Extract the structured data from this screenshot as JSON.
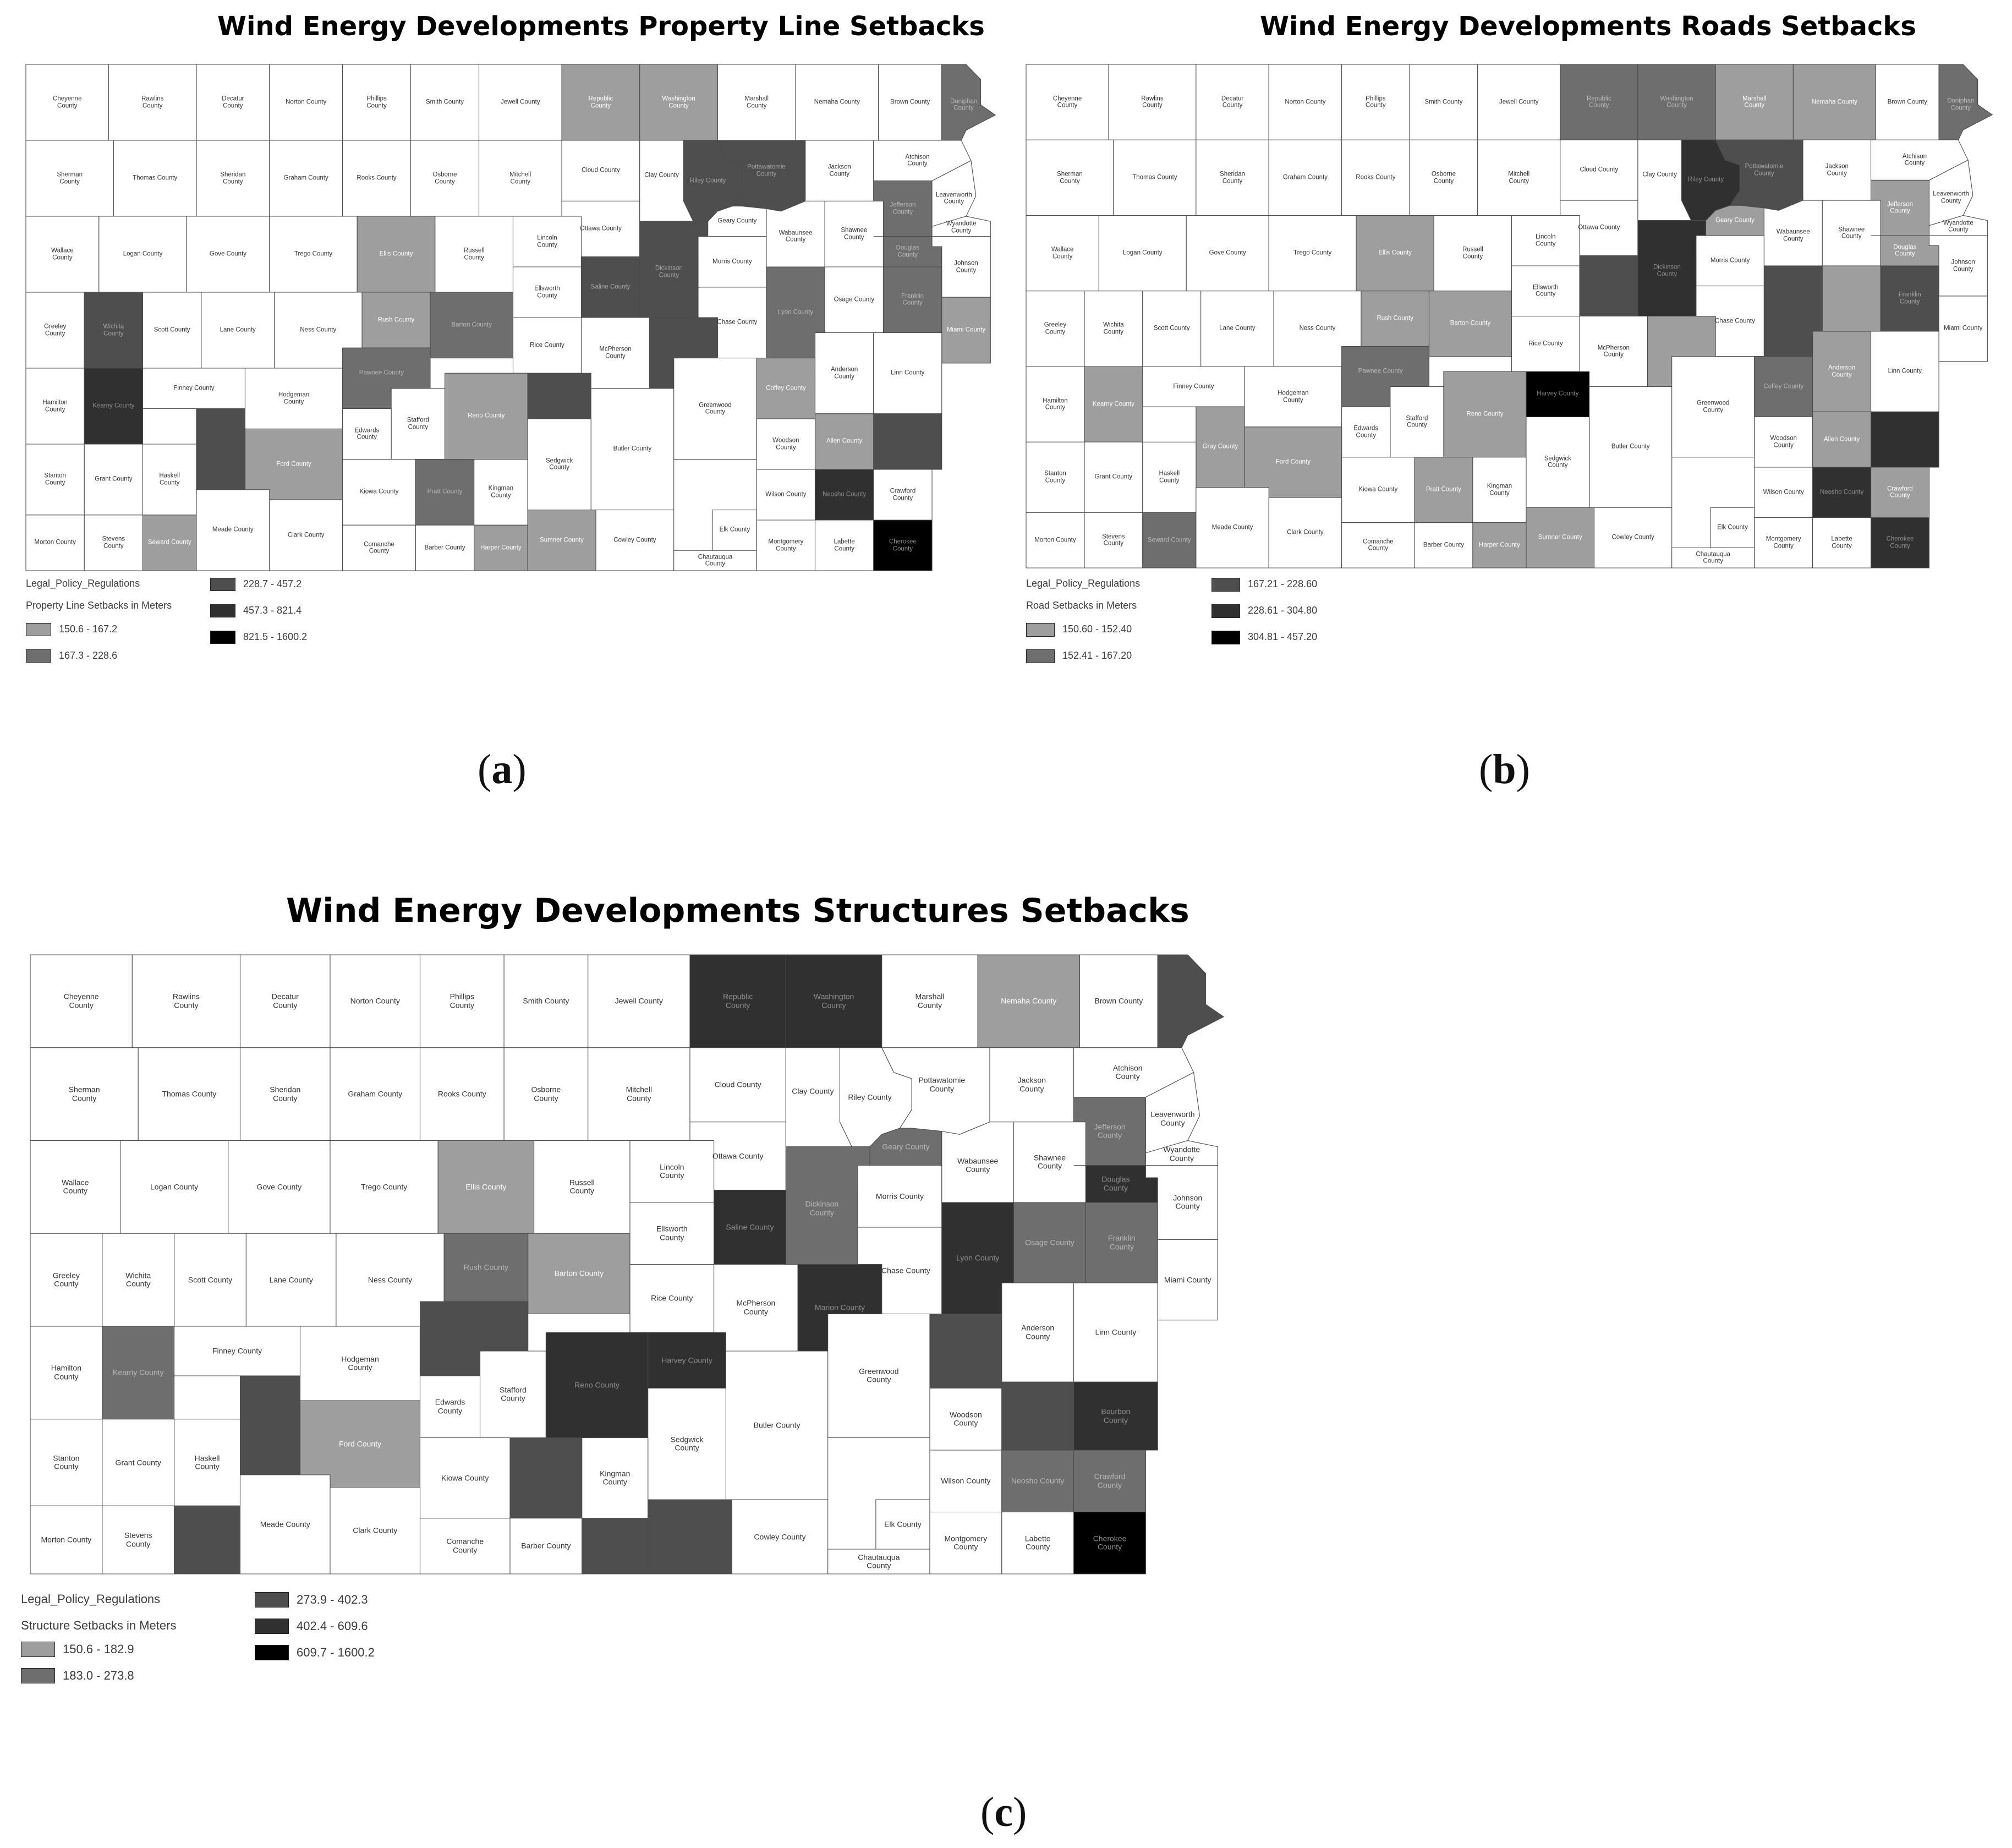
{
  "maps": [
    {
      "id": "a",
      "title": "Wind Energy Developments Property Line Setbacks",
      "panel_label": "a",
      "legend": {
        "layer": "Legal_Policy_Regulations",
        "field": "Property Line Setbacks in Meters",
        "classes": [
          {
            "label": "150.6 - 167.2",
            "color": "#9e9e9e"
          },
          {
            "label": "167.3 - 228.6",
            "color": "#6e6e6e"
          },
          {
            "label": "228.7 - 457.2",
            "color": "#4e4e4e"
          },
          {
            "label": "457.3 - 821.4",
            "color": "#303030"
          },
          {
            "label": "821.5 - 1600.2",
            "color": "#000000"
          }
        ]
      },
      "shaded_counties": {
        "Republic": 1,
        "Washington": 1,
        "Doniphan": 2,
        "Riley": 3,
        "Pottawatomie": 3,
        "Ellis": 1,
        "Saline": 3,
        "Dickinson": 3,
        "Douglas": 2,
        "Jefferson": 2,
        "Rush": 1,
        "Barton": 2,
        "Wichita": 3,
        "Lyon": 2,
        "Franklin": 2,
        "Miami": 1,
        "Marion": 3,
        "Pawnee": 2,
        "Coffey": 1,
        "Reno": 1,
        "Kearny": 4,
        "Harvey": 3,
        "Allen": 1,
        "Gray": 3,
        "Ford": 1,
        "Pratt": 2,
        "Bourbon": 3,
        "Neosho": 4,
        "Seward": 1,
        "Harper": 1,
        "Sumner": 1,
        "Cherokee": 5
      }
    },
    {
      "id": "b",
      "title": "Wind Energy Developments Roads Setbacks",
      "panel_label": "b",
      "legend": {
        "layer": "Legal_Policy_Regulations",
        "field": "Road Setbacks in Meters",
        "classes": [
          {
            "label": "150.60 - 152.40",
            "color": "#9e9e9e"
          },
          {
            "label": "152.41 - 167.20",
            "color": "#6e6e6e"
          },
          {
            "label": "167.21 - 228.60",
            "color": "#4e4e4e"
          },
          {
            "label": "228.61 - 304.80",
            "color": "#303030"
          },
          {
            "label": "304.81 - 457.20",
            "color": "#000000"
          }
        ]
      },
      "shaded_counties": {
        "Republic": 2,
        "Washington": 2,
        "Marshall": 1,
        "Nemaha": 1,
        "Doniphan": 2,
        "Riley": 4,
        "Pottawatomie": 3,
        "Jefferson": 1,
        "Ellis": 1,
        "Geary": 1,
        "Saline": 3,
        "Dickinson": 4,
        "Douglas": 1,
        "Osage": 1,
        "Rush": 1,
        "Barton": 1,
        "Lyon": 3,
        "Franklin": 3,
        "Marion": 1,
        "Pawnee": 2,
        "Coffey": 2,
        "Anderson": 1,
        "Kearny": 1,
        "Reno": 1,
        "Harvey": 5,
        "Allen": 1,
        "Bourbon": 4,
        "Gray": 1,
        "Ford": 1,
        "Pratt": 1,
        "Neosho": 4,
        "Crawford": 1,
        "Seward": 2,
        "Harper": 1,
        "Sumner": 1,
        "Cherokee": 4
      }
    },
    {
      "id": "c",
      "title": "Wind Energy Developments Structures Setbacks",
      "panel_label": "c",
      "legend": {
        "layer": "Legal_Policy_Regulations",
        "field": "Structure Setbacks in Meters",
        "classes": [
          {
            "label": "150.6 - 182.9",
            "color": "#9e9e9e"
          },
          {
            "label": "183.0 - 273.8",
            "color": "#6e6e6e"
          },
          {
            "label": "273.9 - 402.3",
            "color": "#4e4e4e"
          },
          {
            "label": "402.4 - 609.6",
            "color": "#303030"
          },
          {
            "label": "609.7 - 1600.2",
            "color": "#000000"
          }
        ]
      },
      "shaded_counties": {
        "Republic": 4,
        "Washington": 4,
        "Nemaha": 1,
        "Doniphan": 3,
        "Jefferson": 2,
        "Ellis": 1,
        "Geary": 2,
        "Saline": 4,
        "Dickinson": 2,
        "Douglas": 4,
        "Osage": 2,
        "Rush": 2,
        "Barton": 1,
        "Lyon": 4,
        "Franklin": 2,
        "Marion": 4,
        "Kearny": 2,
        "Pawnee": 3,
        "Coffey": 3,
        "Harvey": 4,
        "Reno": 4,
        "Allen": 3,
        "Bourbon": 4,
        "Gray": 3,
        "Ford": 1,
        "Pratt": 3,
        "Neosho": 2,
        "Crawford": 2,
        "Seward": 3,
        "Harper": 3,
        "Sumner": 3,
        "Cherokee": 5
      }
    }
  ],
  "county_labels": {
    "Cheyenne": [
      "Cheyenne",
      "County"
    ],
    "Rawlins": [
      "Rawlins",
      "County"
    ],
    "Decatur": [
      "Decatur",
      "County"
    ],
    "Norton": [
      "Norton County"
    ],
    "Phillips": [
      "Phillips",
      "County"
    ],
    "Smith": [
      "Smith County"
    ],
    "Jewell": [
      "Jewell County"
    ],
    "Republic": [
      "Republic",
      "County"
    ],
    "Washington": [
      "Washington",
      "County"
    ],
    "Marshall": [
      "Marshall",
      "County"
    ],
    "Nemaha": [
      "Nemaha County"
    ],
    "Brown": [
      "Brown County"
    ],
    "Doniphan": [
      "Doniphan",
      "County"
    ],
    "Sherman": [
      "Sherman",
      "County"
    ],
    "Thomas": [
      "Thomas County"
    ],
    "Sheridan": [
      "Sheridan",
      "County"
    ],
    "Graham": [
      "Graham County"
    ],
    "Rooks": [
      "Rooks County"
    ],
    "Osborne": [
      "Osborne",
      "County"
    ],
    "Mitchell": [
      "Mitchell",
      "County"
    ],
    "Cloud": [
      "Cloud County"
    ],
    "Clay": [
      "Clay County"
    ],
    "Riley": [
      "Riley County"
    ],
    "Pottawatomie": [
      "Pottawatomie",
      "County"
    ],
    "Jackson": [
      "Jackson",
      "County"
    ],
    "Atchison": [
      "Atchison",
      "County"
    ],
    "Jefferson": [
      "Jefferson",
      "County"
    ],
    "Leavenworth": [
      "Leavenworth",
      "County"
    ],
    "Wyandotte": [
      "Wyandotte",
      "County"
    ],
    "Wallace": [
      "Wallace",
      "County"
    ],
    "Logan": [
      "Logan County"
    ],
    "Gove": [
      "Gove County"
    ],
    "Trego": [
      "Trego County"
    ],
    "Ellis": [
      "Ellis County"
    ],
    "Russell": [
      "Russell",
      "County"
    ],
    "Lincoln": [
      "Lincoln",
      "County"
    ],
    "Ottawa": [
      "Ottawa County"
    ],
    "Geary": [
      "Geary County"
    ],
    "Wabaunsee": [
      "Wabaunsee",
      "County"
    ],
    "Shawnee": [
      "Shawnee",
      "County"
    ],
    "Douglas": [
      "Douglas",
      "County"
    ],
    "Johnson": [
      "Johnson",
      "County"
    ],
    "Saline": [
      "Saline County"
    ],
    "Dickinson": [
      "Dickinson",
      "County"
    ],
    "Morris": [
      "Morris County"
    ],
    "Ellsworth": [
      "Ellsworth",
      "County"
    ],
    "Greeley": [
      "Greeley",
      "County"
    ],
    "Wichita": [
      "Wichita",
      "County"
    ],
    "Scott": [
      "Scott County"
    ],
    "Lane": [
      "Lane County"
    ],
    "Ness": [
      "Ness County"
    ],
    "Rush": [
      "Rush County"
    ],
    "Barton": [
      "Barton County"
    ],
    "Rice": [
      "Rice County"
    ],
    "McPherson": [
      "McPherson",
      "County"
    ],
    "Marion": [
      "Marion County"
    ],
    "Chase": [
      "Chase County"
    ],
    "Lyon": [
      "Lyon County"
    ],
    "Osage": [
      "Osage County"
    ],
    "Franklin": [
      "Franklin",
      "County"
    ],
    "Miami": [
      "Miami County"
    ],
    "Hamilton": [
      "Hamilton",
      "County"
    ],
    "Kearny": [
      "Kearny County"
    ],
    "Finney": [
      "Finney County"
    ],
    "Hodgeman": [
      "Hodgeman",
      "County"
    ],
    "Pawnee": [
      "Pawnee County"
    ],
    "Stafford": [
      "Stafford",
      "County"
    ],
    "Reno": [
      "Reno County"
    ],
    "Harvey": [
      "Harvey County"
    ],
    "Butler": [
      "Butler County"
    ],
    "Greenwood": [
      "Greenwood",
      "County"
    ],
    "Coffey": [
      "Coffey County"
    ],
    "Anderson": [
      "Anderson",
      "County"
    ],
    "Linn": [
      "Linn County"
    ],
    "Edwards": [
      "Edwards",
      "County"
    ],
    "Sedgwick": [
      "Sedgwick",
      "County"
    ],
    "Woodson": [
      "Woodson",
      "County"
    ],
    "Allen": [
      "Allen County"
    ],
    "Bourbon": [
      "Bourbon",
      "County"
    ],
    "Stanton": [
      "Stanton",
      "County"
    ],
    "Grant": [
      "Grant County"
    ],
    "Haskell": [
      "Haskell",
      "County"
    ],
    "Gray": [
      "Gray County"
    ],
    "Ford": [
      "Ford County"
    ],
    "Kiowa": [
      "Kiowa County"
    ],
    "Pratt": [
      "Pratt County"
    ],
    "Kingman": [
      "Kingman",
      "County"
    ],
    "Wilson": [
      "Wilson County"
    ],
    "Neosho": [
      "Neosho County"
    ],
    "Crawford": [
      "Crawford",
      "County"
    ],
    "Elk": [
      "Elk County"
    ],
    "Morton": [
      "Morton County"
    ],
    "Stevens": [
      "Stevens",
      "County"
    ],
    "Seward": [
      "Seward County"
    ],
    "Meade": [
      "Meade County"
    ],
    "Clark": [
      "Clark County"
    ],
    "Comanche": [
      "Comanche",
      "County"
    ],
    "Barber": [
      "Barber County"
    ],
    "Harper": [
      "Harper County"
    ],
    "Sumner": [
      "Sumner County"
    ],
    "Cowley": [
      "Cowley County"
    ],
    "Chautauqua": [
      "Chautauqua",
      "County"
    ],
    "Montgomery": [
      "Montgomery",
      "County"
    ],
    "Labette": [
      "Labette",
      "County"
    ],
    "Cherokee": [
      "Cherokee",
      "County"
    ]
  },
  "unlabeled_counties": {
    "a": [
      "Gray",
      "Bourbon",
      "Marion",
      "Harvey"
    ],
    "b": [
      "Saline",
      "Marion",
      "Lyon",
      "Bourbon",
      "Osage"
    ],
    "c": [
      "Doniphan",
      "Seward",
      "Gray",
      "Pratt",
      "Sumner",
      "Harper",
      "Coffey",
      "Allen",
      "Pawnee"
    ]
  },
  "colors": {
    "background": "#ffffff",
    "county_fill": "#ffffff",
    "county_border": "#4a4a4a",
    "label_dark": "#333333",
    "label_light": "#b4b4b4"
  }
}
